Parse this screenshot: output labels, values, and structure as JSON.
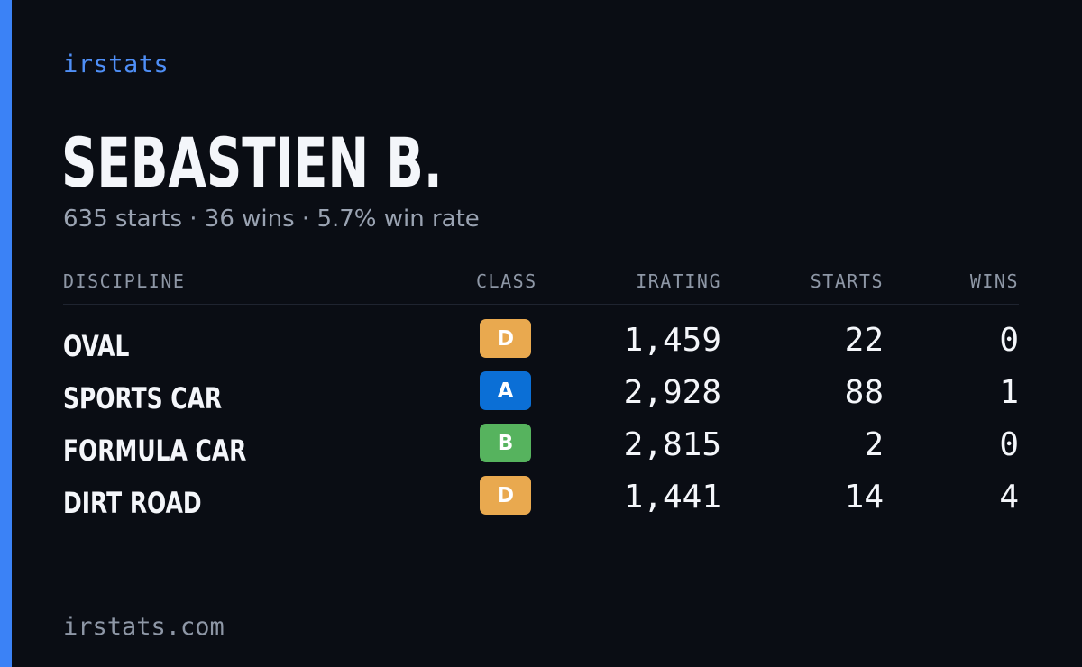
{
  "brand": "irstats",
  "driver": {
    "name": "SEBASTIEN B.",
    "summary": "635 starts · 36 wins · 5.7% win rate"
  },
  "table": {
    "headers": {
      "discipline": "DISCIPLINE",
      "class": "CLASS",
      "irating": "IRATING",
      "starts": "STARTS",
      "wins": "WINS"
    },
    "rows": [
      {
        "discipline": "OVAL",
        "class": "D",
        "irating": "1,459",
        "starts": "22",
        "wins": "0"
      },
      {
        "discipline": "SPORTS CAR",
        "class": "A",
        "irating": "2,928",
        "starts": "88",
        "wins": "1"
      },
      {
        "discipline": "FORMULA CAR",
        "class": "B",
        "irating": "2,815",
        "starts": "2",
        "wins": "0"
      },
      {
        "discipline": "DIRT ROAD",
        "class": "D",
        "irating": "1,441",
        "starts": "14",
        "wins": "4"
      }
    ]
  },
  "class_colors": {
    "A": "#0b6fd6",
    "B": "#56b35e",
    "D": "#e9a94f"
  },
  "accent_color": "#3b82f6",
  "footer": "irstats.com"
}
